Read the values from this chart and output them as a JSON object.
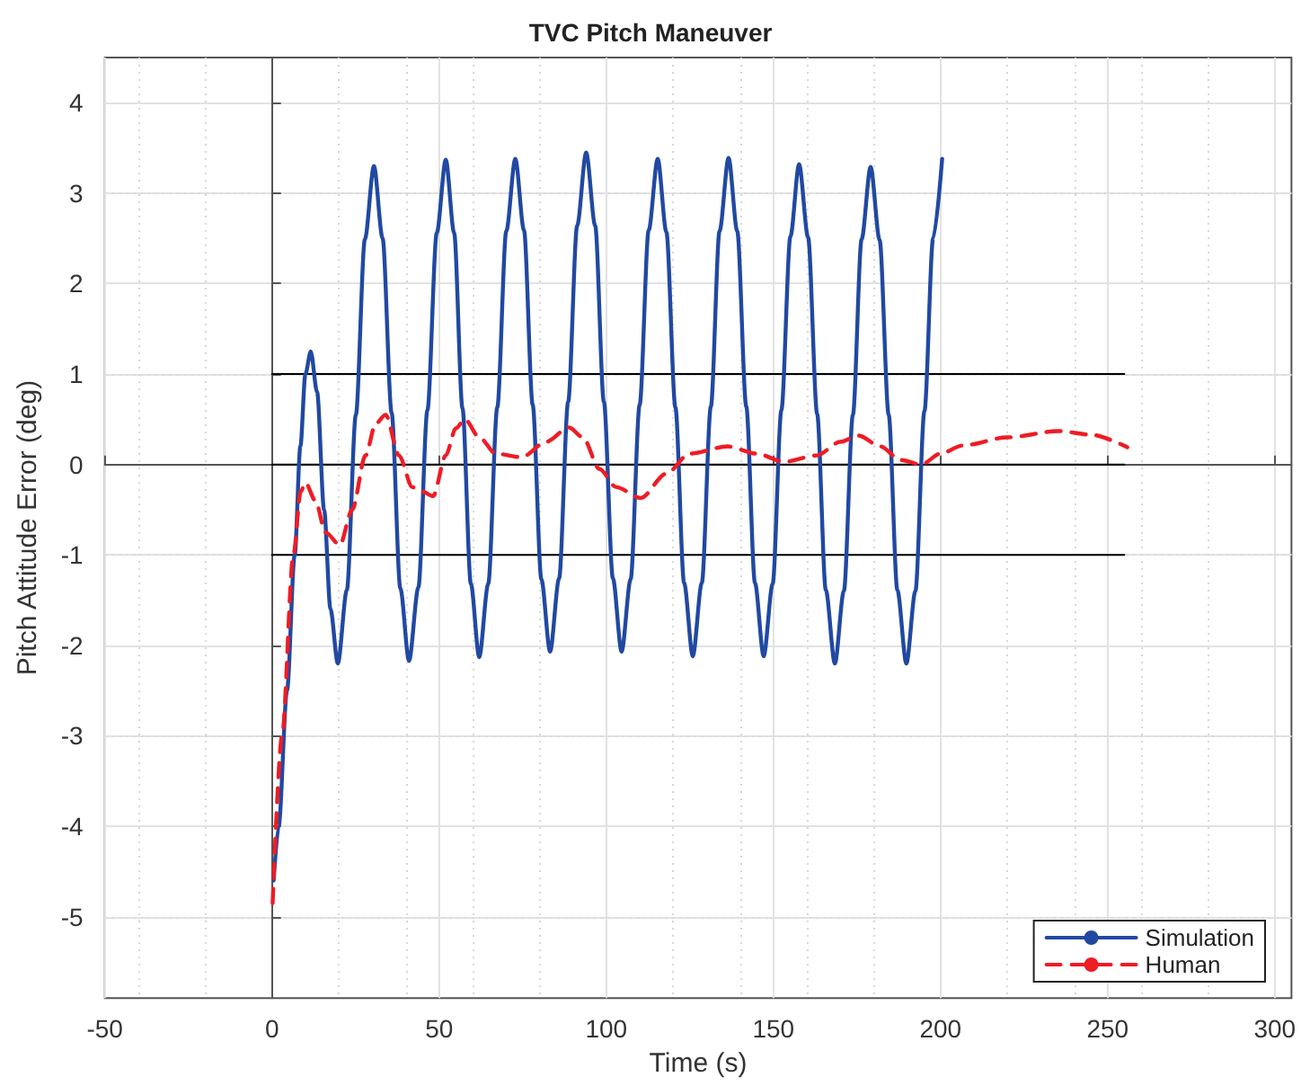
{
  "chart_data": {
    "type": "line",
    "title": "TVC Pitch Maneuver",
    "xlabel": "Time (s)",
    "ylabel": "Pitch Attitude Error (deg)",
    "xlim": [
      -50,
      305
    ],
    "xticks": [
      -50,
      0,
      50,
      100,
      150,
      200,
      250,
      300
    ],
    "ylim": [
      -5.9,
      4.5
    ],
    "yticks": [
      -5,
      -4,
      -3,
      -2,
      -1,
      0,
      1,
      2,
      3,
      4
    ],
    "grid": true,
    "legend": "bottom right",
    "marker": "none",
    "series": [
      {
        "name": "Simulation",
        "color": "#2149a2",
        "line_style": "solid",
        "x": [
          0.5,
          2,
          4.5,
          6.8,
          8.5,
          10,
          11.6,
          13.5,
          15.6,
          17.5,
          19.7,
          22.4,
          25.1,
          27.8,
          30.5,
          33.1,
          35.8,
          38.4,
          41,
          43.8,
          46.5,
          49.3,
          52,
          54.5,
          57,
          59.5,
          62,
          64.7,
          67.4,
          70.1,
          72.8,
          75.4,
          78,
          80.6,
          83.2,
          85.9,
          88.6,
          91.3,
          94,
          96.7,
          99.3,
          102,
          104.6,
          107.3,
          110,
          112.7,
          115.4,
          118,
          120.7,
          123.3,
          125.9,
          128.6,
          131.3,
          133.9,
          136.6,
          139.2,
          141.9,
          144.5,
          147.1,
          149.8,
          152.4,
          155.1,
          157.7,
          160.4,
          163.1,
          165.7,
          168.4,
          171.1,
          173.8,
          176.4,
          179.1,
          181.8,
          184.5,
          187.1,
          189.8,
          192.5,
          195.2,
          197.8,
          200.5
        ],
        "values": [
          -4.6,
          -4.0,
          -2.5,
          -1.0,
          0.2,
          1.0,
          1.25,
          0.8,
          -0.5,
          -1.6,
          -2.2,
          -1.39,
          0.55,
          2.49,
          3.3,
          2.5,
          0.57,
          -1.37,
          -2.17,
          -1.36,
          0.6,
          2.56,
          3.37,
          2.56,
          0.62,
          -1.32,
          -2.13,
          -1.32,
          0.63,
          2.58,
          3.38,
          2.59,
          0.66,
          -1.27,
          -2.07,
          -1.26,
          0.69,
          2.64,
          3.45,
          2.64,
          0.69,
          -1.26,
          -2.07,
          -1.27,
          0.66,
          2.59,
          3.38,
          2.57,
          0.63,
          -1.31,
          -2.12,
          -1.31,
          0.64,
          2.58,
          3.39,
          2.58,
          0.64,
          -1.31,
          -2.12,
          -1.32,
          0.6,
          2.52,
          3.32,
          2.51,
          0.56,
          -1.39,
          -2.2,
          -1.4,
          0.55,
          2.49,
          3.29,
          2.48,
          0.55,
          -1.39,
          -2.2,
          -1.4,
          0.59,
          2.5,
          3.38
        ]
      },
      {
        "name": "Human",
        "color": "#ee1c25",
        "line_style": "dashed",
        "x": [
          0.2,
          3,
          6.4,
          8.6,
          10,
          13,
          16,
          20.3,
          24,
          28,
          31,
          34,
          38,
          42,
          45,
          48.2,
          52,
          55,
          57.7,
          62,
          67,
          74.7,
          82,
          88.9,
          93,
          98,
          103,
          110.3,
          118,
          125,
          136.3,
          145,
          153.2,
          163,
          170,
          175.5,
          182,
          188,
          194.3,
          200,
          206.6,
          220,
          235.3,
          245,
          255.9
        ],
        "values": [
          -4.85,
          -3.0,
          -1.0,
          -0.3,
          -0.2,
          -0.4,
          -0.75,
          -0.89,
          -0.5,
          0.1,
          0.45,
          0.55,
          0.1,
          -0.25,
          -0.3,
          -0.35,
          0.1,
          0.4,
          0.5,
          0.3,
          0.12,
          0.08,
          0.25,
          0.41,
          0.3,
          -0.05,
          -0.25,
          -0.37,
          -0.1,
          0.12,
          0.2,
          0.12,
          0.03,
          0.1,
          0.25,
          0.32,
          0.2,
          0.05,
          0,
          0.12,
          0.21,
          0.3,
          0.37,
          0.33,
          0.19
        ]
      },
      {
        "color": "#000000",
        "line_style": "solid",
        "x": [
          0,
          255
        ],
        "values": [
          1,
          1
        ]
      },
      {
        "color": "#000000",
        "line_style": "solid",
        "x": [
          0,
          255
        ],
        "values": [
          0,
          0
        ]
      },
      {
        "color": "#000000",
        "line_style": "solid",
        "x": [
          0,
          255
        ],
        "values": [
          -1,
          -1
        ]
      }
    ]
  }
}
